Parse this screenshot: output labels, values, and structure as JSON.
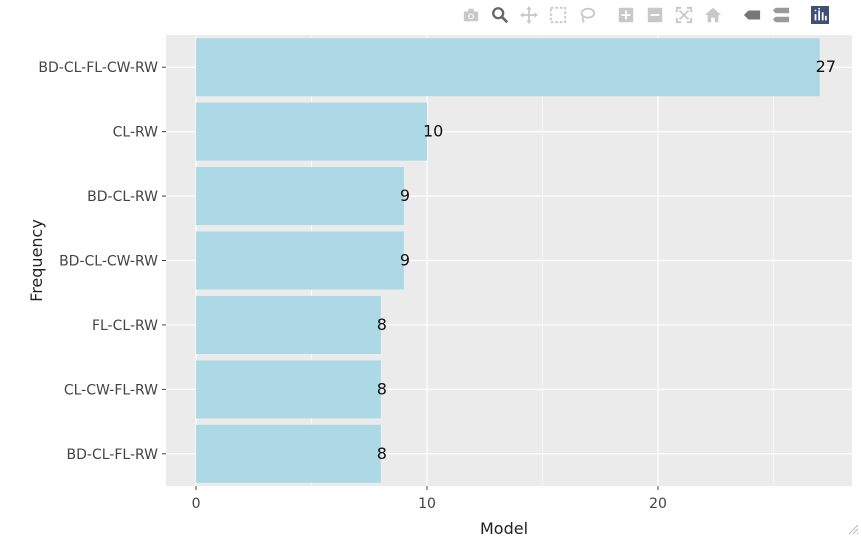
{
  "modebar": {
    "buttons": [
      {
        "icon": "camera-icon",
        "label": "Download plot as a png"
      },
      {
        "icon": "zoom-icon",
        "label": "Zoom"
      },
      {
        "icon": "pan-icon",
        "label": "Pan"
      },
      {
        "icon": "box-select-icon",
        "label": "Box Select"
      },
      {
        "icon": "lasso-select-icon",
        "label": "Lasso Select"
      },
      {
        "icon": "zoom-in-icon",
        "label": "Zoom in"
      },
      {
        "icon": "zoom-out-icon",
        "label": "Zoom out"
      },
      {
        "icon": "autoscale-icon",
        "label": "Autoscale"
      },
      {
        "icon": "home-icon",
        "label": "Reset axes"
      },
      {
        "icon": "spike-lines-icon",
        "label": "Toggle Spike Lines"
      },
      {
        "icon": "hover-compare-icon",
        "label": "Compare data on hover"
      },
      {
        "icon": "plotly-logo-icon",
        "label": "Produced with Plotly"
      }
    ]
  },
  "chart_data": {
    "type": "bar",
    "orientation": "horizontal",
    "categories": [
      "BD-CL-FL-CW-RW",
      "CL-RW",
      "BD-CL-RW",
      "BD-CL-CW-RW",
      "FL-CL-RW",
      "CL-CW-FL-RW",
      "BD-CL-FL-RW"
    ],
    "values": [
      27,
      10,
      9,
      9,
      8,
      8,
      8
    ],
    "xlabel": "Model",
    "ylabel": "Frequency",
    "xlim": [
      -1.3,
      28.4
    ],
    "xticks": [
      0,
      10,
      20
    ],
    "grid": true,
    "bar_color": "#add8e6",
    "plot_background": "#ebebeb",
    "data_labels": true
  }
}
